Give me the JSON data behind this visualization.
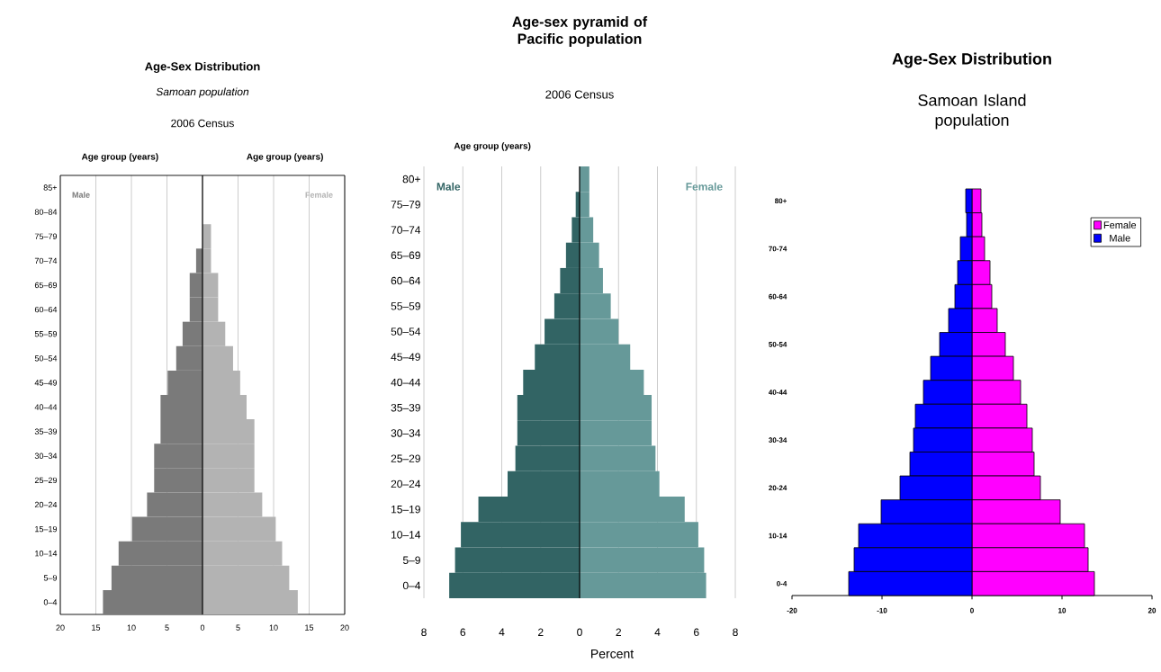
{
  "chart_data": [
    {
      "type": "bar",
      "orientation": "horizontal",
      "title": "Age-Sex Distribution",
      "subtitle": "Samoan population",
      "annotations": [
        "2006 Census"
      ],
      "ylabel": "Age group (years)",
      "y2label": "Age group (years)",
      "categories": [
        "85+",
        "80–84",
        "75–79",
        "70–74",
        "65–69",
        "60–64",
        "55–59",
        "50–54",
        "45–49",
        "40–44",
        "35–39",
        "30–34",
        "25–29",
        "20–24",
        "15–19",
        "10–14",
        "5–9",
        "0–4"
      ],
      "series": [
        {
          "name": "Male",
          "color": "#7a7a7a",
          "values": [
            0,
            0,
            0,
            -0.9,
            -1.8,
            -1.8,
            -2.8,
            -3.7,
            -4.9,
            -5.9,
            -5.9,
            -6.8,
            -6.8,
            -7.8,
            -9.9,
            -11.8,
            -12.8,
            -14.0
          ]
        },
        {
          "name": "Female",
          "color": "#b3b3b3",
          "values": [
            0,
            0,
            1.2,
            1.2,
            2.2,
            2.2,
            3.2,
            4.3,
            5.3,
            6.2,
            7.3,
            7.3,
            7.3,
            8.4,
            10.3,
            11.2,
            12.2,
            13.4
          ]
        }
      ],
      "xlim": [
        -20,
        20
      ],
      "xticks": [
        {
          "value": -20,
          "label": "20"
        },
        {
          "value": -15,
          "label": "15"
        },
        {
          "value": -10,
          "label": "10"
        },
        {
          "value": -5,
          "label": "5"
        },
        0,
        5,
        10,
        15,
        20
      ],
      "grid": "x",
      "stacked": true
    },
    {
      "type": "bar",
      "orientation": "horizontal",
      "title": "Age-sex pyramid of Pacific population",
      "subtitle": "2006 Census",
      "ylabel": "Age group (years)",
      "xlabel": "Percent",
      "categories": [
        "80+",
        "75–79",
        "70–74",
        "65–69",
        "60–64",
        "55–59",
        "50–54",
        "45–49",
        "40–44",
        "35–39",
        "30–34",
        "25–29",
        "20–24",
        "15–19",
        "10–14",
        "5–9",
        "0–4"
      ],
      "series": [
        {
          "name": "Male",
          "color": "#326464",
          "values": [
            null,
            -0.2,
            -0.4,
            -0.7,
            -1.0,
            -1.3,
            -1.8,
            -2.3,
            -2.9,
            -3.2,
            -3.2,
            -3.3,
            -3.7,
            -5.2,
            -6.1,
            -6.4,
            -6.7
          ]
        },
        {
          "name": "Female",
          "color": "#669999",
          "values": [
            0.5,
            0.5,
            0.7,
            1.0,
            1.2,
            1.6,
            2.0,
            2.6,
            3.3,
            3.7,
            3.7,
            3.9,
            4.1,
            5.4,
            6.1,
            6.4,
            6.5
          ]
        }
      ],
      "xlim": [
        -8,
        8
      ],
      "xticks": [
        {
          "value": -8,
          "label": "8"
        },
        {
          "value": -6,
          "label": "6"
        },
        {
          "value": -4,
          "label": "4"
        },
        {
          "value": -2,
          "label": "2"
        },
        0,
        2,
        4,
        6,
        8
      ],
      "grid": "x",
      "stacked": true
    },
    {
      "type": "bar",
      "orientation": "horizontal",
      "title": "Age-Sex Distribution",
      "subtitle": "Samoan Island population",
      "categories": [
        "80+",
        null,
        "70-74",
        null,
        "60-64",
        null,
        "50-54",
        null,
        "40-44",
        null,
        "30-34",
        null,
        "20-24",
        null,
        "10-14",
        null,
        "0-4"
      ],
      "series": [
        {
          "name": "Female",
          "color": "#ff00ff",
          "values": [
            1.0,
            1.1,
            1.4,
            2.0,
            2.2,
            2.8,
            3.7,
            4.6,
            5.4,
            6.1,
            6.7,
            6.9,
            7.6,
            9.8,
            12.5,
            12.9,
            13.6
          ]
        },
        {
          "name": "Male",
          "color": "#0000ff",
          "values": [
            -0.7,
            -0.6,
            -1.3,
            -1.6,
            -1.9,
            -2.6,
            -3.6,
            -4.6,
            -5.4,
            -6.3,
            -6.5,
            -6.9,
            -8.0,
            -10.1,
            -12.6,
            -13.1,
            -13.7
          ]
        }
      ],
      "xlim": [
        -20,
        20
      ],
      "xticks": [
        -20,
        -10,
        0,
        10,
        20
      ],
      "legend": "top right",
      "stacked": true
    }
  ]
}
